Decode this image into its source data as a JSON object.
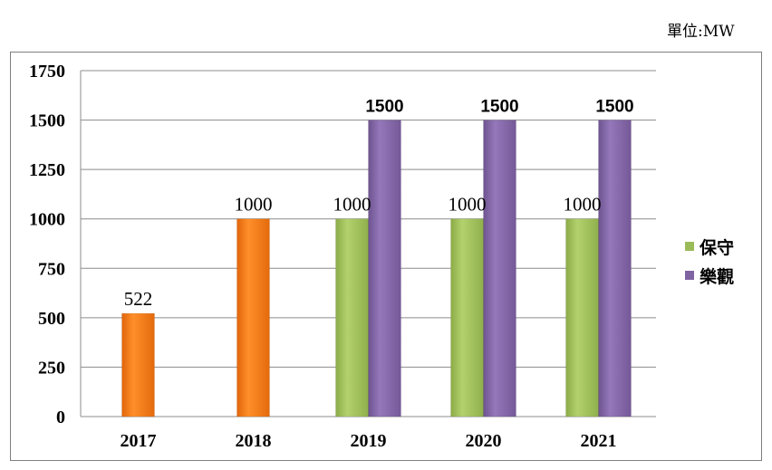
{
  "unit_label": "單位:MW",
  "legend": [
    {
      "label": "保守",
      "color": "#9bbb59"
    },
    {
      "label": "樂觀",
      "color": "#8064a2"
    }
  ],
  "chart_data": {
    "type": "bar",
    "categories": [
      "2017",
      "2018",
      "2019",
      "2020",
      "2021"
    ],
    "ylim": [
      0,
      1750
    ],
    "yticks": [
      0,
      250,
      500,
      750,
      1000,
      1250,
      1500,
      1750
    ],
    "grid": true,
    "legend_position": "right",
    "series": [
      {
        "color": "#f27a11",
        "values": [
          522,
          1000,
          null,
          null,
          null
        ]
      },
      {
        "name": "保守",
        "color": "#9bbb59",
        "values": [
          null,
          null,
          1000,
          1000,
          1000
        ]
      },
      {
        "name": "樂觀",
        "color": "#8064a2",
        "values": [
          null,
          null,
          1500,
          1500,
          1500
        ]
      }
    ]
  }
}
